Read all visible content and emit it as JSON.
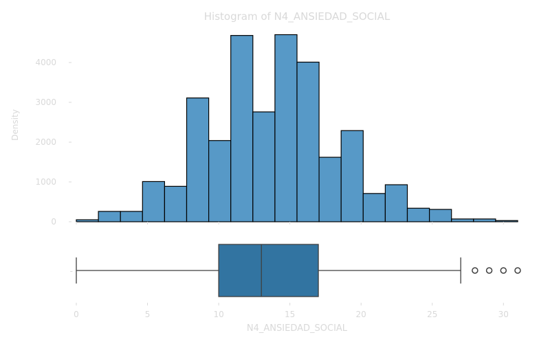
{
  "chart_data": [
    {
      "type": "bar",
      "subtype": "histogram",
      "title": "Histogram of N4_ANSIEDAD_SOCIAL",
      "ylabel": "Density",
      "xlim": [
        0,
        31
      ],
      "ylim": [
        0,
        4950
      ],
      "yticks": [
        0,
        1000,
        2000,
        3000,
        4000
      ],
      "bin_edges": [
        0,
        1.55,
        3.1,
        4.65,
        6.2,
        7.75,
        9.3,
        10.85,
        12.4,
        13.95,
        15.5,
        17.05,
        18.6,
        20.15,
        21.7,
        23.25,
        24.8,
        26.35,
        27.9,
        29.45,
        31
      ],
      "values": [
        50,
        260,
        260,
        1010,
        890,
        3110,
        2040,
        4680,
        2760,
        4700,
        4010,
        1620,
        2290,
        710,
        930,
        340,
        310,
        70,
        70,
        30
      ],
      "colors": {
        "bar_fill": "#5799c7",
        "bar_edge": "#000000",
        "text": "#d9d9d9"
      }
    },
    {
      "type": "boxplot",
      "xlabel": "N4_ANSIEDAD_SOCIAL",
      "xlim": [
        0,
        31
      ],
      "xticks": [
        0,
        5,
        10,
        15,
        20,
        25,
        30
      ],
      "ytick_label": "-",
      "whisker_low": 0,
      "q1": 10,
      "median": 13,
      "q3": 17,
      "whisker_high": 27,
      "outliers": [
        28,
        29,
        30,
        31
      ],
      "colors": {
        "box_fill": "#3274a1",
        "line": "#3f3f3f",
        "text": "#d9d9d9"
      }
    }
  ]
}
